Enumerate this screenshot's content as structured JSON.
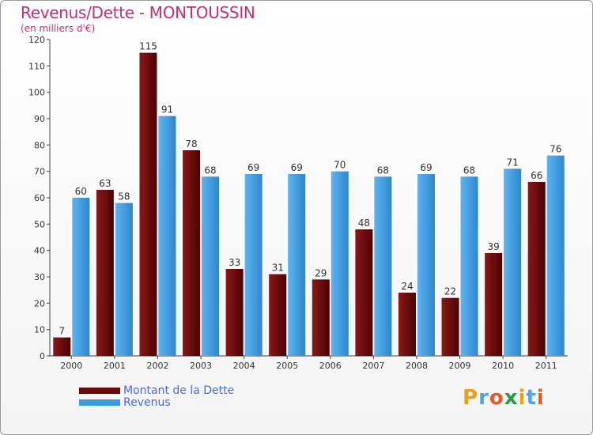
{
  "chart_data": {
    "type": "bar",
    "title": "Revenus/Dette - MONTOUSSIN",
    "subtitle": "(en milliers d'€)",
    "categories": [
      "2000",
      "2001",
      "2002",
      "2003",
      "2004",
      "2005",
      "2006",
      "2007",
      "2008",
      "2009",
      "2010",
      "2011"
    ],
    "series": [
      {
        "name": "Montant de la Dette",
        "color": "#6b0a0a",
        "values": [
          7,
          63,
          115,
          78,
          33,
          31,
          29,
          48,
          24,
          22,
          39,
          66
        ]
      },
      {
        "name": "Revenus",
        "color": "#3d9be0",
        "values": [
          60,
          58,
          91,
          68,
          69,
          69,
          70,
          68,
          69,
          68,
          71,
          76
        ]
      }
    ],
    "ylim": [
      0,
      120
    ],
    "yticks": [
      0,
      10,
      20,
      30,
      40,
      50,
      60,
      70,
      80,
      90,
      100,
      110,
      120
    ],
    "grid": false,
    "legend": "bottom-left"
  },
  "logo": {
    "text": "Proxiti"
  }
}
